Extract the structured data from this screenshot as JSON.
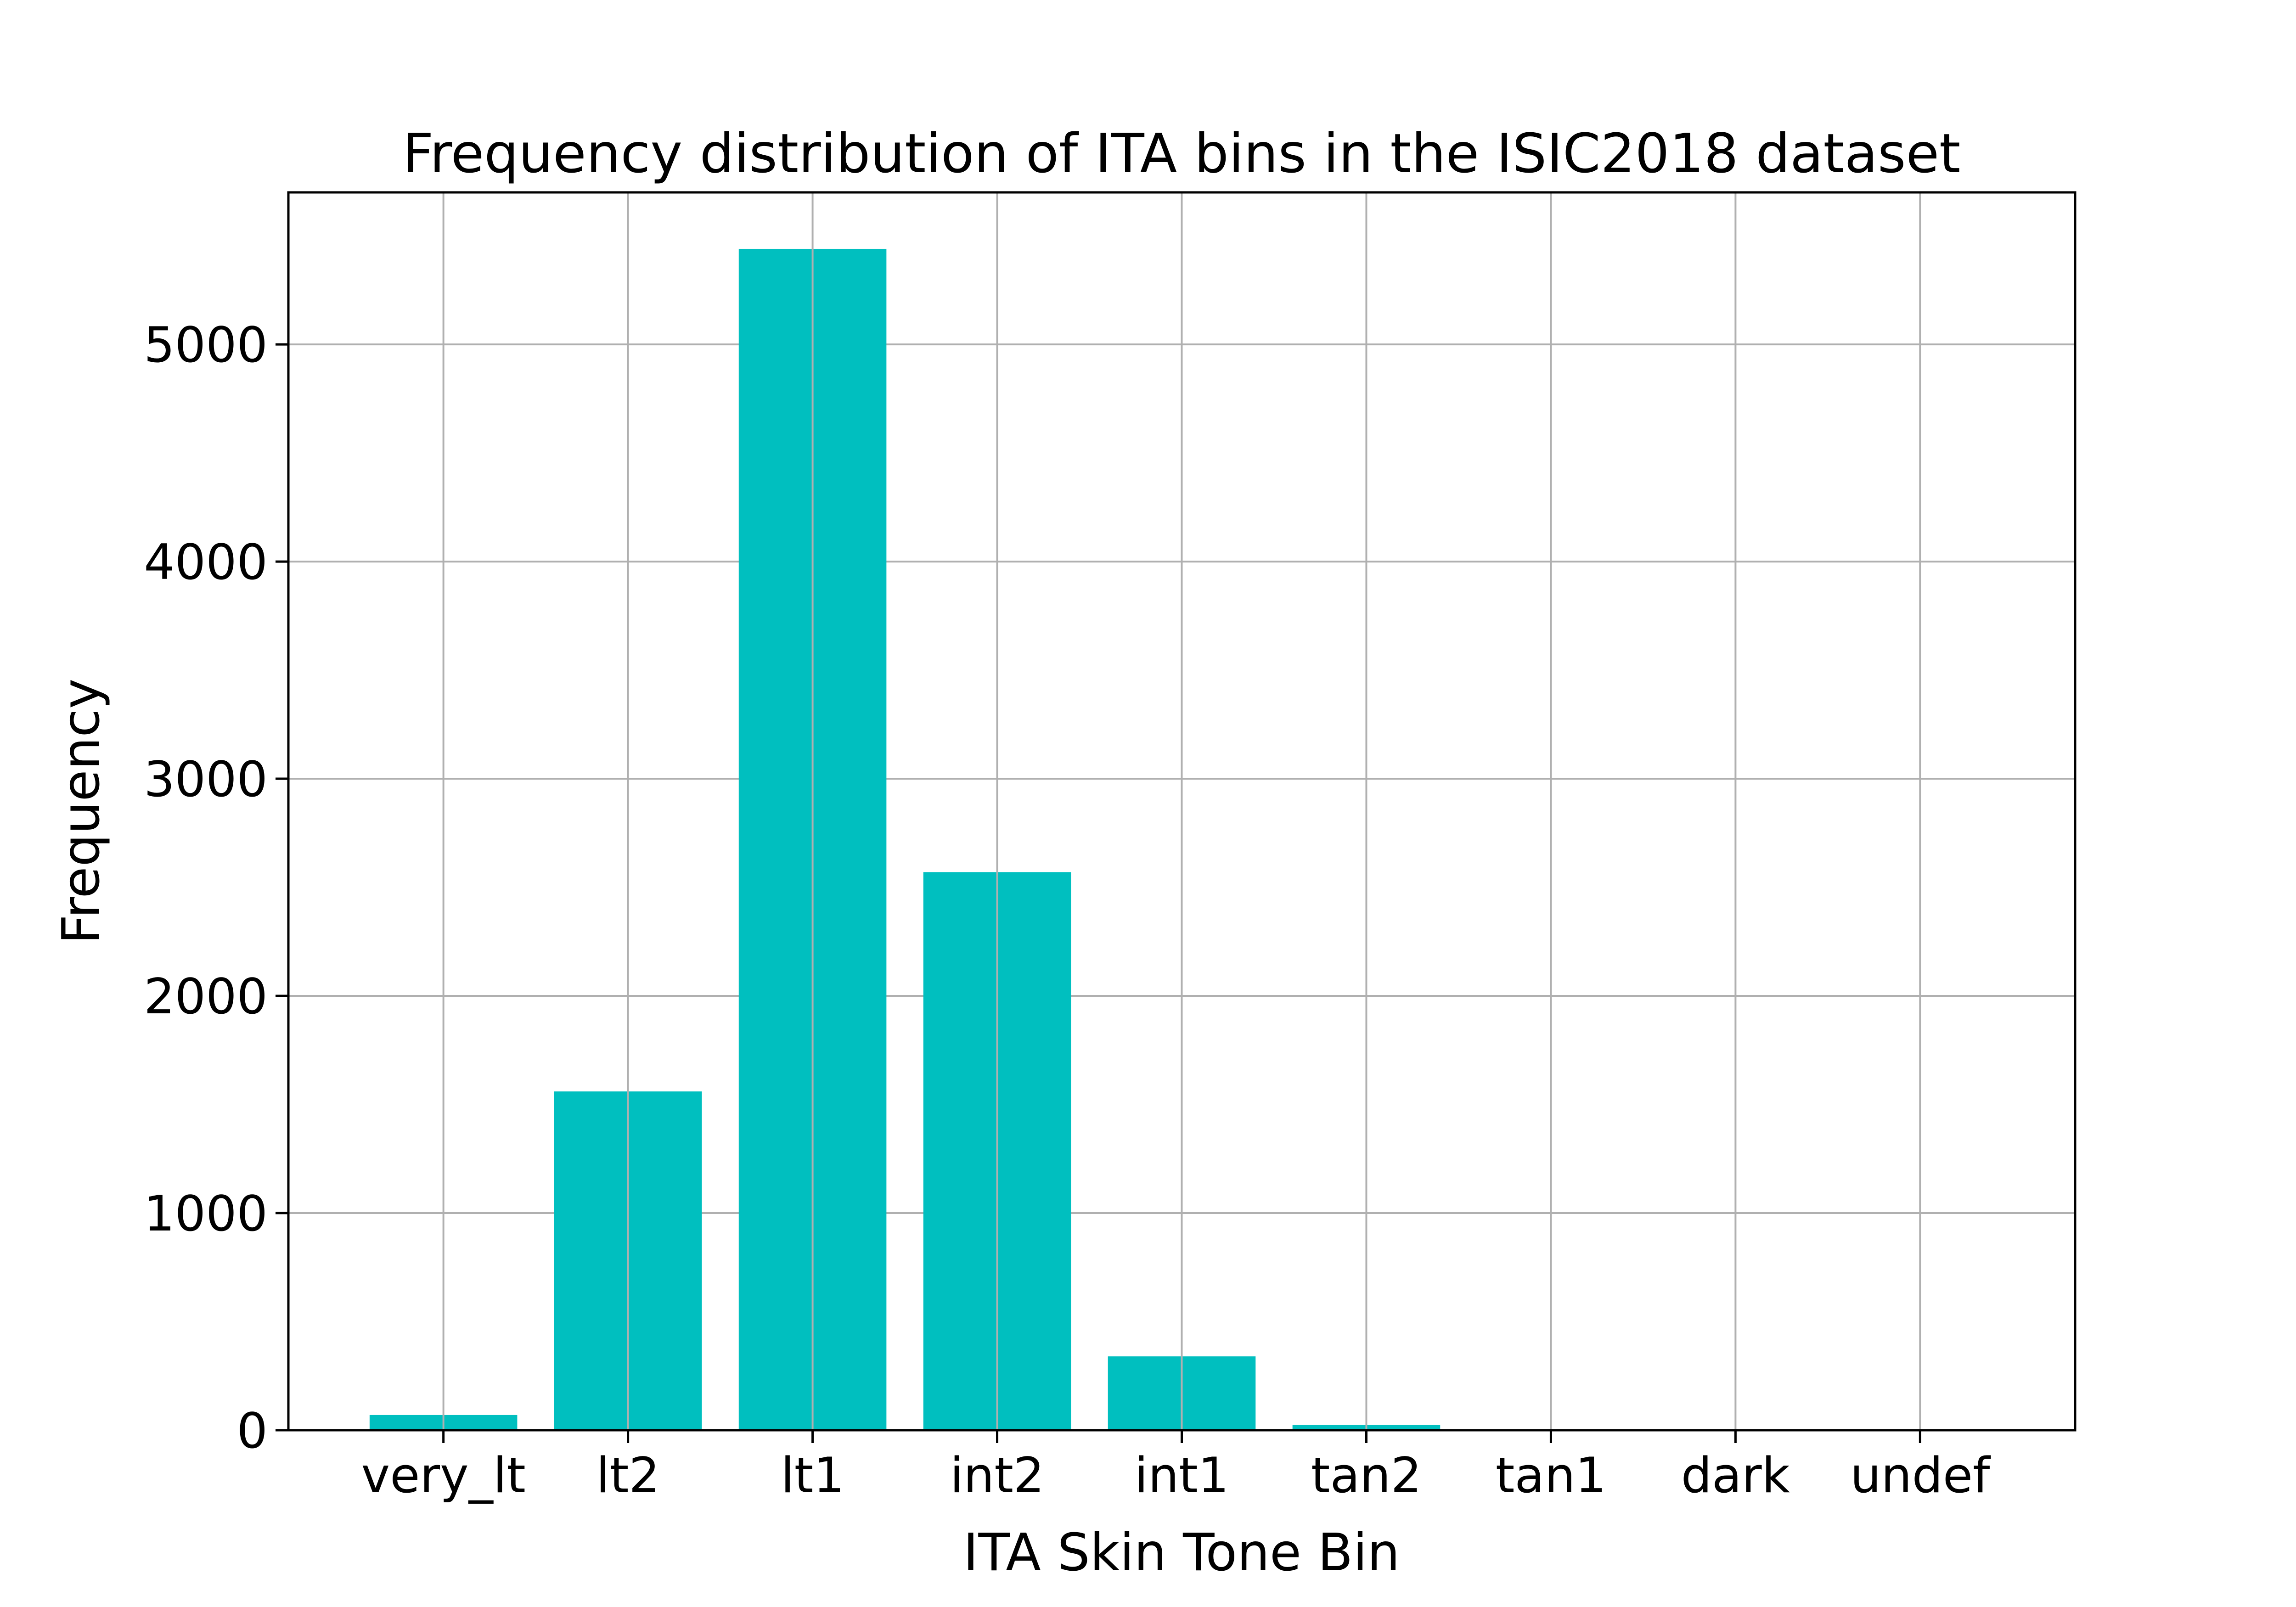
{
  "chart_data": {
    "type": "bar",
    "title": "Frequency distribution of ITA bins in the ISIC2018 dataset",
    "xlabel": "ITA Skin Tone Bin",
    "ylabel": "Frequency",
    "categories": [
      "very_lt",
      "lt2",
      "lt1",
      "int2",
      "int1",
      "tan2",
      "tan1",
      "dark",
      "undef"
    ],
    "values": [
      70,
      1560,
      5440,
      2570,
      340,
      25,
      0,
      0,
      0
    ],
    "ylim": [
      0,
      5700
    ],
    "yticks": [
      0,
      1000,
      2000,
      3000,
      4000,
      5000
    ],
    "grid": true,
    "bar_color": "#00bfbf",
    "grid_color": "#b0b0b0"
  }
}
